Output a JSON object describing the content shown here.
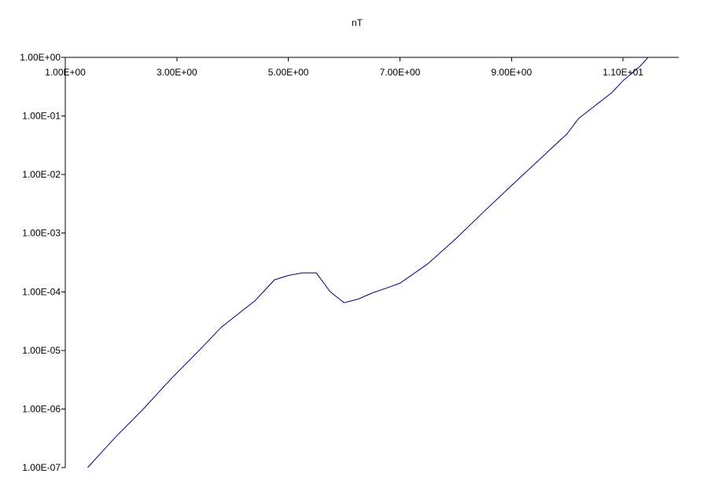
{
  "chart_data": {
    "type": "line",
    "title": "nT",
    "xlabel": "",
    "ylabel": "",
    "xlim": [
      1.0,
      12.0
    ],
    "ylim": [
      1e-07,
      1.0
    ],
    "y_scale": "log",
    "grid": false,
    "x_ticks": [
      {
        "value": 1.0,
        "label": "1.00E+00"
      },
      {
        "value": 3.0,
        "label": "3.00E+00"
      },
      {
        "value": 5.0,
        "label": "5.00E+00"
      },
      {
        "value": 7.0,
        "label": "7.00E+00"
      },
      {
        "value": 9.0,
        "label": "9.00E+00"
      },
      {
        "value": 11.0,
        "label": "1.10E+01"
      }
    ],
    "y_ticks": [
      {
        "value": 1.0,
        "label": "1.00E+00"
      },
      {
        "value": 0.1,
        "label": "1.00E-01"
      },
      {
        "value": 0.01,
        "label": "1.00E-02"
      },
      {
        "value": 0.001,
        "label": "1.00E-03"
      },
      {
        "value": 0.0001,
        "label": "1.00E-04"
      },
      {
        "value": 1e-05,
        "label": "1.00E-05"
      },
      {
        "value": 1e-06,
        "label": "1.00E-06"
      },
      {
        "value": 1e-07,
        "label": "1.00E-07"
      }
    ],
    "series": [
      {
        "color": "#000080",
        "x": [
          1.4,
          1.9,
          2.4,
          2.9,
          3.4,
          3.8,
          4.4,
          4.75,
          5.0,
          5.25,
          5.5,
          5.75,
          6.0,
          6.25,
          6.5,
          6.75,
          7.0,
          7.5,
          8.0,
          8.5,
          9.0,
          9.5,
          10.0,
          10.2,
          10.5,
          10.8,
          11.0,
          11.3,
          11.45
        ],
        "y": [
          1e-07,
          3.3e-07,
          1e-06,
          3.3e-06,
          1e-05,
          2.5e-05,
          7e-05,
          0.00016,
          0.00019,
          0.00021,
          0.00021,
          0.0001,
          6.5e-05,
          7.5e-05,
          9.5e-05,
          0.000115,
          0.00014,
          0.0003,
          0.0008,
          0.0023,
          0.0065,
          0.018,
          0.05,
          0.09,
          0.15,
          0.25,
          0.4,
          0.7,
          1.0
        ]
      }
    ]
  }
}
